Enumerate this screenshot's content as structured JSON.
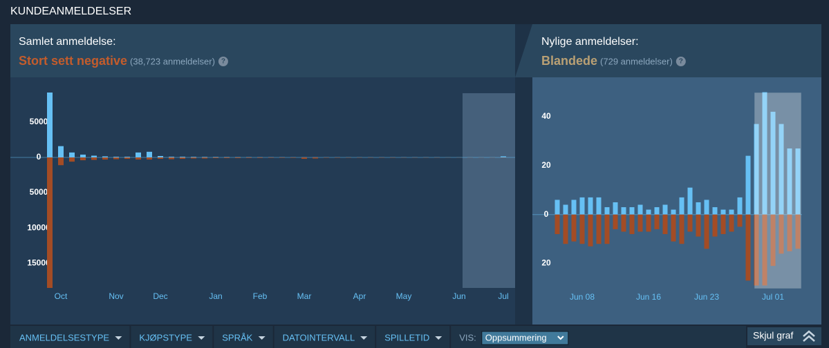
{
  "header": {
    "title": "KUNDEANMELDELSER"
  },
  "overall": {
    "label": "Samlet anmeldelse:",
    "rating": "Stort sett negative",
    "count": "(38,723 anmeldelser)",
    "help": "?"
  },
  "recent": {
    "label": "Nylige anmeldelser:",
    "rating": "Blandede",
    "count": "(729 anmeldelser)",
    "help": "?"
  },
  "filters": [
    "ANMELDELSESTYPE",
    "KJØPSTYPE",
    "SPRÅK",
    "DATOINTERVALL",
    "SPILLETID"
  ],
  "display": {
    "label": "VIS:",
    "value": "Oppsummering"
  },
  "toggle": "Skjul graf",
  "chart_data": [
    {
      "type": "bar",
      "categories": [
        null,
        "Oct",
        null,
        null,
        null,
        null,
        "Nov",
        null,
        null,
        null,
        "Dec",
        null,
        null,
        null,
        null,
        "Jan",
        null,
        null,
        null,
        "Feb",
        null,
        null,
        null,
        "Mar",
        null,
        null,
        null,
        null,
        "Apr",
        null,
        null,
        null,
        "May",
        null,
        null,
        null,
        null,
        "Jun",
        null,
        null,
        null,
        "Jul"
      ],
      "series": [
        {
          "color": "#66c0f4",
          "values": [
            9200,
            1600,
            700,
            400,
            250,
            150,
            100,
            100,
            700,
            800,
            200,
            100,
            100,
            80,
            70,
            60,
            50,
            40,
            40,
            30,
            30,
            30,
            20,
            20,
            20,
            20,
            20,
            20,
            20,
            20,
            20,
            20,
            20,
            20,
            20,
            20,
            10,
            10,
            10,
            10,
            10,
            150
          ]
        },
        {
          "color": "#a34c25",
          "values": [
            -18500,
            -1100,
            -600,
            -400,
            -350,
            -300,
            -250,
            -200,
            -300,
            -300,
            -200,
            -250,
            -200,
            -150,
            -150,
            -100,
            -100,
            -100,
            -80,
            -80,
            -60,
            -60,
            -60,
            -200,
            -150,
            -50,
            -50,
            -40,
            -40,
            -40,
            -40,
            -40,
            -30,
            -30,
            -30,
            -30,
            -20,
            -20,
            -20,
            -20,
            -20,
            -30
          ]
        }
      ],
      "ylim": [
        -18500,
        9200
      ],
      "yticks": [
        {
          "value": -15000,
          "label": "15000"
        },
        {
          "value": -10000,
          "label": "10000"
        },
        {
          "value": -5000,
          "label": "5000"
        },
        0,
        5000
      ]
    },
    {
      "type": "bar",
      "categories": [
        null,
        null,
        null,
        "Jun 08",
        null,
        null,
        null,
        null,
        null,
        null,
        null,
        "Jun 16",
        null,
        null,
        null,
        null,
        null,
        null,
        "Jun 23",
        null,
        null,
        null,
        null,
        null,
        null,
        null,
        "Jul 01",
        null,
        null,
        null
      ],
      "series": [
        {
          "color": "#66c0f4",
          "values": [
            6,
            4,
            6,
            7,
            7,
            7,
            3,
            5,
            3,
            3,
            4,
            2,
            3,
            4,
            2,
            7,
            11,
            5,
            6,
            3,
            2,
            2,
            7,
            24,
            37,
            50,
            42,
            37,
            27,
            27
          ]
        },
        {
          "color": "#a34c25",
          "values": [
            -8,
            -12,
            -11,
            -12,
            -13,
            -12,
            -12,
            -6,
            -7,
            -8,
            -7,
            -7,
            -6,
            -8,
            -11,
            -12,
            -7,
            -9,
            -14,
            -9,
            -8,
            -7,
            -5,
            -27,
            -29,
            -29,
            -21,
            -16,
            -15,
            -14
          ]
        }
      ],
      "ylim": [
        -30,
        50
      ],
      "yticks": [
        {
          "value": -20,
          "label": "20"
        },
        0,
        20,
        40
      ]
    }
  ]
}
